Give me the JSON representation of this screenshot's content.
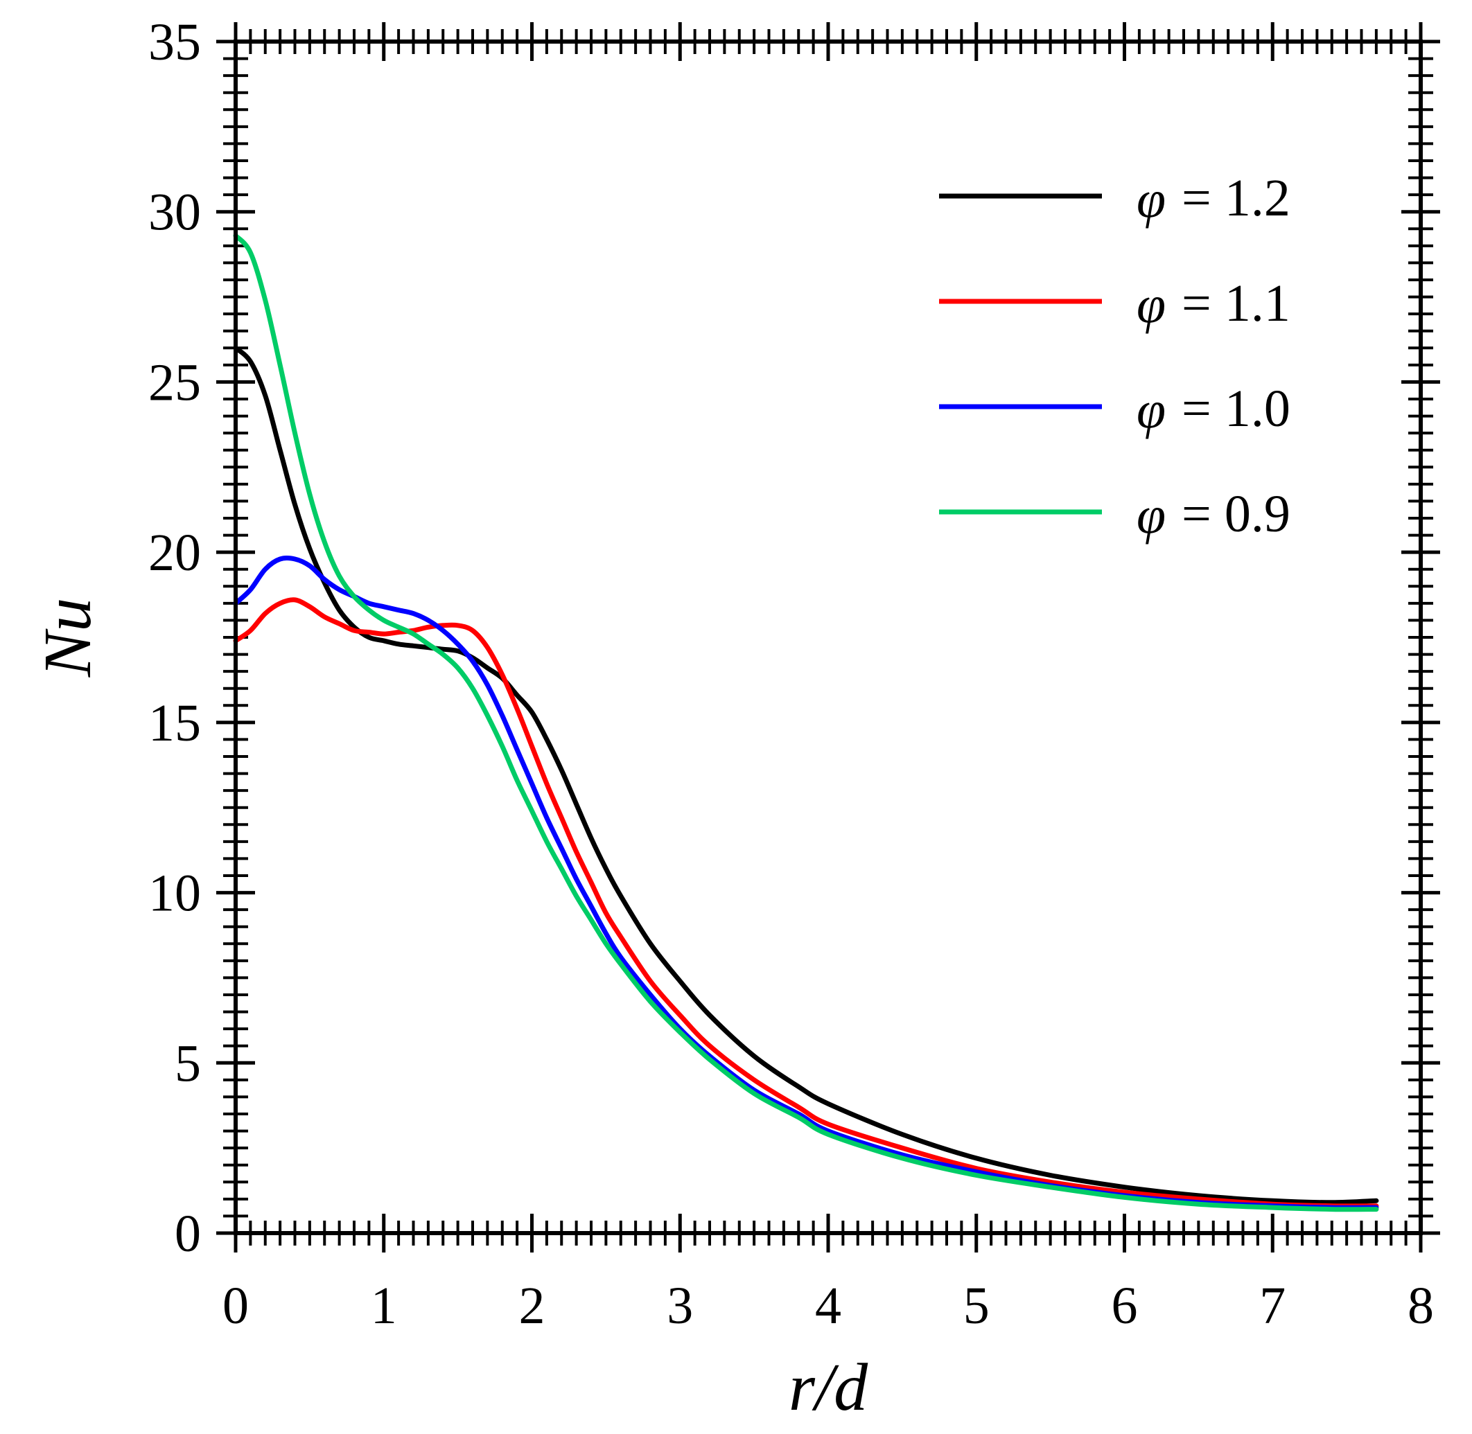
{
  "chart_data": {
    "type": "line",
    "xlabel": "r/d",
    "ylabel": "Nu",
    "xlim": [
      0,
      8
    ],
    "ylim": [
      0,
      35
    ],
    "x_ticks": [
      0,
      1,
      2,
      3,
      4,
      5,
      6,
      7,
      8
    ],
    "y_ticks": [
      0,
      5,
      10,
      15,
      20,
      25,
      30,
      35
    ],
    "x_tick_labels": [
      "0",
      "1",
      "2",
      "3",
      "4",
      "5",
      "6",
      "7",
      "8"
    ],
    "y_tick_labels": [
      "0",
      "5",
      "10",
      "15",
      "20",
      "25",
      "30",
      "35"
    ],
    "grid": false,
    "legend_position": "top-right",
    "series": [
      {
        "name": "φ = 1.2",
        "symbol": "φ",
        "value_text": "= 1.2",
        "color": "#000000",
        "x": [
          0,
          0.1,
          0.2,
          0.3,
          0.4,
          0.5,
          0.6,
          0.7,
          0.8,
          0.9,
          1.0,
          1.1,
          1.2,
          1.3,
          1.4,
          1.5,
          1.6,
          1.7,
          1.8,
          1.9,
          2.0,
          2.1,
          2.2,
          2.3,
          2.4,
          2.5,
          2.6,
          2.8,
          3.0,
          3.2,
          3.5,
          3.8,
          4.0,
          4.5,
          5.0,
          5.5,
          6.0,
          6.5,
          7.0,
          7.4,
          7.7
        ],
        "y": [
          26.0,
          25.6,
          24.6,
          23.0,
          21.4,
          20.1,
          19.1,
          18.3,
          17.8,
          17.5,
          17.4,
          17.3,
          17.25,
          17.2,
          17.15,
          17.1,
          16.9,
          16.6,
          16.3,
          15.8,
          15.3,
          14.5,
          13.6,
          12.6,
          11.6,
          10.7,
          9.9,
          8.5,
          7.4,
          6.4,
          5.2,
          4.3,
          3.8,
          2.9,
          2.2,
          1.7,
          1.35,
          1.1,
          0.95,
          0.9,
          0.95
        ]
      },
      {
        "name": "φ = 1.1",
        "symbol": "φ",
        "value_text": "= 1.1",
        "color": "#ff0000",
        "x": [
          0,
          0.1,
          0.2,
          0.3,
          0.4,
          0.5,
          0.6,
          0.7,
          0.8,
          0.9,
          1.0,
          1.1,
          1.2,
          1.3,
          1.4,
          1.5,
          1.6,
          1.7,
          1.8,
          1.9,
          2.0,
          2.1,
          2.2,
          2.3,
          2.4,
          2.5,
          2.6,
          2.8,
          3.0,
          3.2,
          3.5,
          3.8,
          4.0,
          4.5,
          5.0,
          5.5,
          6.0,
          6.5,
          7.0,
          7.4,
          7.7
        ],
        "y": [
          17.4,
          17.7,
          18.2,
          18.5,
          18.6,
          18.4,
          18.1,
          17.9,
          17.7,
          17.65,
          17.6,
          17.65,
          17.7,
          17.8,
          17.85,
          17.85,
          17.7,
          17.2,
          16.4,
          15.4,
          14.3,
          13.2,
          12.2,
          11.2,
          10.3,
          9.4,
          8.7,
          7.4,
          6.4,
          5.5,
          4.5,
          3.7,
          3.2,
          2.5,
          1.9,
          1.5,
          1.2,
          1.0,
          0.85,
          0.8,
          0.8
        ]
      },
      {
        "name": "φ = 1.0",
        "symbol": "φ",
        "value_text": "= 1.0",
        "color": "#0000ff",
        "x": [
          0,
          0.1,
          0.2,
          0.3,
          0.4,
          0.5,
          0.6,
          0.7,
          0.8,
          0.9,
          1.0,
          1.1,
          1.2,
          1.3,
          1.4,
          1.5,
          1.6,
          1.7,
          1.8,
          1.9,
          2.0,
          2.1,
          2.2,
          2.3,
          2.4,
          2.5,
          2.6,
          2.8,
          3.0,
          3.2,
          3.5,
          3.8,
          4.0,
          4.5,
          5.0,
          5.5,
          6.0,
          6.5,
          7.0,
          7.4,
          7.7
        ],
        "y": [
          18.5,
          18.9,
          19.5,
          19.8,
          19.8,
          19.6,
          19.2,
          18.9,
          18.7,
          18.5,
          18.4,
          18.3,
          18.2,
          18.0,
          17.7,
          17.3,
          16.8,
          16.1,
          15.2,
          14.2,
          13.2,
          12.2,
          11.3,
          10.4,
          9.6,
          8.8,
          8.1,
          7.0,
          6.0,
          5.2,
          4.2,
          3.5,
          3.0,
          2.3,
          1.8,
          1.4,
          1.1,
          0.9,
          0.8,
          0.75,
          0.75
        ]
      },
      {
        "name": "φ = 0.9",
        "symbol": "φ",
        "value_text": "= 0.9",
        "color": "#00cc66",
        "x": [
          0,
          0.1,
          0.2,
          0.3,
          0.4,
          0.5,
          0.6,
          0.7,
          0.8,
          0.9,
          1.0,
          1.1,
          1.2,
          1.3,
          1.4,
          1.5,
          1.6,
          1.7,
          1.8,
          1.9,
          2.0,
          2.1,
          2.2,
          2.3,
          2.4,
          2.5,
          2.6,
          2.8,
          3.0,
          3.2,
          3.5,
          3.8,
          4.0,
          4.5,
          5.0,
          5.5,
          6.0,
          6.5,
          7.0,
          7.4,
          7.7
        ],
        "y": [
          29.3,
          28.8,
          27.4,
          25.5,
          23.5,
          21.7,
          20.3,
          19.3,
          18.7,
          18.3,
          18.0,
          17.8,
          17.6,
          17.3,
          17.0,
          16.6,
          16.0,
          15.2,
          14.3,
          13.3,
          12.4,
          11.5,
          10.7,
          9.9,
          9.2,
          8.5,
          7.9,
          6.8,
          5.9,
          5.1,
          4.1,
          3.4,
          2.9,
          2.2,
          1.7,
          1.35,
          1.05,
          0.85,
          0.75,
          0.7,
          0.7
        ]
      }
    ]
  }
}
